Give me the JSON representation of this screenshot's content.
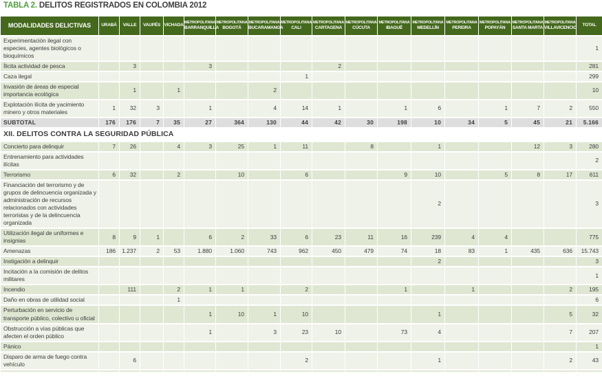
{
  "title": {
    "prefix": "TABLA 2.",
    "text": "DELITOS REGISTRADOS EN COLOMBIA 2012"
  },
  "colors": {
    "header_green": "#44691d",
    "title_green": "#4f9e3d",
    "row_light": "#eff2e8",
    "row_sage": "#dfe7d2",
    "subtotal_gray": "#dedede",
    "text": "#3d3d3d"
  },
  "table": {
    "label_header": "MODALIDADES DELICTIVAS",
    "columns": [
      {
        "group": "",
        "name": "URABÁ"
      },
      {
        "group": "",
        "name": "VALLE"
      },
      {
        "group": "",
        "name": "VAUPÉS"
      },
      {
        "group": "",
        "name": "VICHADA"
      },
      {
        "group": "METROPOLITANA",
        "name": "BARRANQUILLA"
      },
      {
        "group": "METROPOLITANA",
        "name": "BOGOTÁ"
      },
      {
        "group": "METROPOLITANA",
        "name": "BUCARAMANGA"
      },
      {
        "group": "METROPOLITANA",
        "name": "CALI"
      },
      {
        "group": "METROPOLITANA",
        "name": "CARTAGENA"
      },
      {
        "group": "METROPOLITANA",
        "name": "CÚCUTA"
      },
      {
        "group": "METROPOLITANA",
        "name": "IBAGUÉ"
      },
      {
        "group": "METROPOLITANA",
        "name": "MEDELLÍN"
      },
      {
        "group": "METROPOLITANA",
        "name": "PEREIRA"
      },
      {
        "group": "METROPOLITANA",
        "name": "POPAYÁN"
      },
      {
        "group": "METROPOLITANA",
        "name": "SANTA MARTA"
      },
      {
        "group": "METROPOLITANA",
        "name": "VILLAVICENCIO"
      },
      {
        "group": "",
        "name": "TOTAL"
      }
    ],
    "rows": [
      {
        "type": "data",
        "label": "Experimentación ilegal con especies, agentes biológicos o bioquímicos",
        "values": [
          "",
          "",
          "",
          "",
          "",
          "",
          "",
          "",
          "",
          "",
          "",
          "",
          "",
          "",
          "",
          "",
          "1"
        ]
      },
      {
        "type": "data",
        "label": "Ílicita actividad de pesca",
        "values": [
          "",
          "3",
          "",
          "",
          "3",
          "",
          "",
          "",
          "2",
          "",
          "",
          "",
          "",
          "",
          "",
          "",
          "281"
        ]
      },
      {
        "type": "data",
        "label": "Caza ilegal",
        "values": [
          "",
          "",
          "",
          "",
          "",
          "",
          "",
          "1",
          "",
          "",
          "",
          "",
          "",
          "",
          "",
          "",
          "299"
        ]
      },
      {
        "type": "data",
        "label": "Invasión de áreas de especial importancia ecológica",
        "values": [
          "",
          "1",
          "",
          "1",
          "",
          "",
          "2",
          "",
          "",
          "",
          "",
          "",
          "",
          "",
          "",
          "",
          "10"
        ]
      },
      {
        "type": "data",
        "label": "Explotación ilícita de yacimiento minero y otros materiales",
        "values": [
          "1",
          "32",
          "3",
          "",
          "1",
          "",
          "4",
          "14",
          "1",
          "",
          "1",
          "6",
          "",
          "1",
          "7",
          "2",
          "550"
        ]
      },
      {
        "type": "subtotal",
        "label": "SUBTOTAL",
        "values": [
          "176",
          "176",
          "7",
          "35",
          "27",
          "364",
          "130",
          "44",
          "42",
          "30",
          "198",
          "10",
          "34",
          "5",
          "45",
          "21",
          "5.166"
        ]
      },
      {
        "type": "section",
        "label": "XII. DELITOS CONTRA LA SEGURIDAD PÚBLICA"
      },
      {
        "type": "data",
        "label": "Concierto para delinquir",
        "values": [
          "7",
          "26",
          "",
          "4",
          "3",
          "25",
          "1",
          "11",
          "",
          "8",
          "",
          "1",
          "",
          "",
          "12",
          "3",
          "280"
        ]
      },
      {
        "type": "data",
        "label": "Entrenamiento para actividades ilícitas",
        "values": [
          "",
          "",
          "",
          "",
          "",
          "",
          "",
          "",
          "",
          "",
          "",
          "",
          "",
          "",
          "",
          "",
          "2"
        ]
      },
      {
        "type": "data",
        "label": "Terrorismo",
        "values": [
          "6",
          "32",
          "",
          "2",
          "",
          "10",
          "",
          "6",
          "",
          "",
          "9",
          "10",
          "",
          "5",
          "8",
          "17",
          "611"
        ]
      },
      {
        "type": "data",
        "label": "Financiación del terrorismo y de grupos de delincuencia organizada y administración de recursos relacionados con actividades terroristas y de la delincuencia organizada",
        "values": [
          "",
          "",
          "",
          "",
          "",
          "",
          "",
          "",
          "",
          "",
          "",
          "2",
          "",
          "",
          "",
          "",
          "3"
        ]
      },
      {
        "type": "data",
        "label": "Utilización ilegal de uniformes e insignias",
        "values": [
          "8",
          "9",
          "1",
          "",
          "6",
          "2",
          "33",
          "6",
          "23",
          "11",
          "16",
          "239",
          "4",
          "4",
          "",
          "",
          "775"
        ]
      },
      {
        "type": "data",
        "label": "Amenazas",
        "values": [
          "186",
          "1.237",
          "2",
          "53",
          "1.880",
          "1.060",
          "743",
          "962",
          "450",
          "479",
          "74",
          "18",
          "83",
          "1",
          "435",
          "636",
          "15.743"
        ]
      },
      {
        "type": "data",
        "label": "Instigación a delinquir",
        "values": [
          "",
          "",
          "",
          "",
          "",
          "",
          "",
          "",
          "",
          "",
          "",
          "2",
          "",
          "",
          "",
          "",
          "3"
        ]
      },
      {
        "type": "data",
        "label": "Incitación a la comisión de delitos militares",
        "values": [
          "",
          "",
          "",
          "",
          "",
          "",
          "",
          "",
          "",
          "",
          "",
          "",
          "",
          "",
          "",
          "",
          "1"
        ]
      },
      {
        "type": "data",
        "label": "Incendio",
        "values": [
          "",
          "111",
          "",
          "2",
          "1",
          "1",
          "",
          "2",
          "",
          "",
          "1",
          "",
          "1",
          "",
          "",
          "2",
          "195"
        ]
      },
      {
        "type": "data",
        "label": "Daño en obras de utilidad social",
        "values": [
          "",
          "",
          "",
          "1",
          "",
          "",
          "",
          "",
          "",
          "",
          "",
          "",
          "",
          "",
          "",
          "",
          "6"
        ]
      },
      {
        "type": "data",
        "label": "Perturbación en servicio de transporte público, colectivo u oficial",
        "values": [
          "",
          "",
          "",
          "",
          "1",
          "10",
          "1",
          "10",
          "",
          "",
          "",
          "1",
          "",
          "",
          "",
          "5",
          "32"
        ]
      },
      {
        "type": "data",
        "label": "Obstrucción a vías públicas que afecten el orden público",
        "values": [
          "",
          "",
          "",
          "",
          "1",
          "",
          "3",
          "23",
          "10",
          "",
          "73",
          "4",
          "",
          "",
          "",
          "7",
          "207"
        ]
      },
      {
        "type": "data",
        "label": "Pánico",
        "values": [
          "",
          "",
          "",
          "",
          "",
          "",
          "",
          "",
          "",
          "",
          "",
          "",
          "",
          "",
          "",
          "",
          "1"
        ]
      },
      {
        "type": "data",
        "label": "Disparo de arma de fuego contra vehículo",
        "values": [
          "",
          "6",
          "",
          "",
          "",
          "",
          "",
          "2",
          "",
          "",
          "",
          "1",
          "",
          "",
          "",
          "2",
          "43"
        ]
      },
      {
        "type": "data",
        "label": "",
        "values": [
          "",
          "",
          "",
          "",
          "",
          "",
          "",
          "",
          "",
          "",
          "",
          "",
          "",
          "",
          "",
          "",
          ""
        ]
      }
    ]
  }
}
